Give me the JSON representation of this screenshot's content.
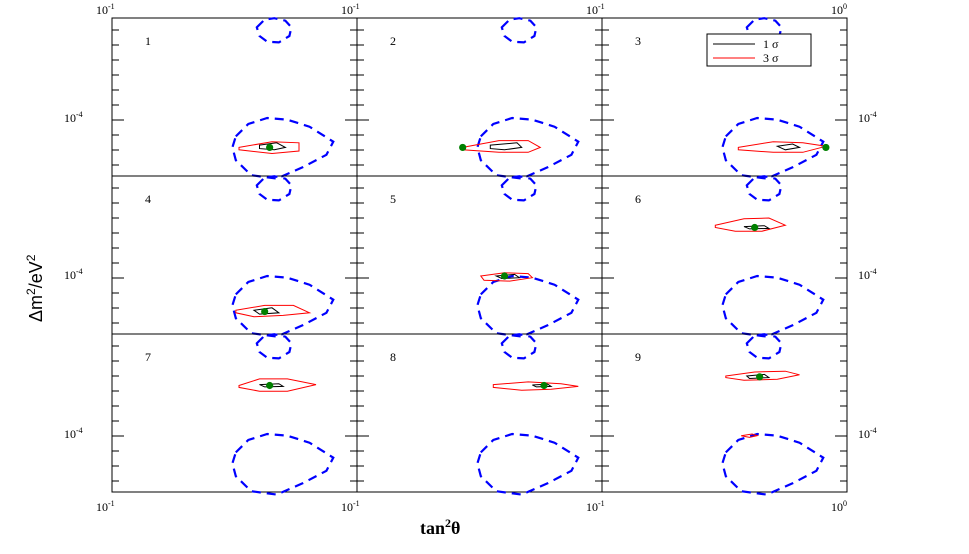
{
  "chart_data": {
    "type": "contour-grid",
    "xlabel_base": "tan",
    "xlabel_exp": "2",
    "xlabel_theta": "θ",
    "ylabel_base": "Δm",
    "ylabel_exp1": "2",
    "ylabel_mid": "/eV",
    "ylabel_exp2": "2",
    "x_scale": "log",
    "y_scale": "log",
    "xlim": [
      0.1,
      1.0
    ],
    "top_tick_labels": [
      {
        "mant": "10",
        "exp": "-1"
      },
      {
        "mant": "10",
        "exp": "-1"
      },
      {
        "mant": "10",
        "exp": "-1"
      },
      {
        "mant": "10",
        "exp": "0"
      }
    ],
    "bottom_tick_labels": [
      {
        "mant": "10",
        "exp": "-1"
      },
      {
        "mant": "10",
        "exp": "-1"
      },
      {
        "mant": "10",
        "exp": "-1"
      },
      {
        "mant": "10",
        "exp": "0"
      }
    ],
    "y_tick_label": {
      "mant": "10",
      "exp": "-4"
    },
    "legend": {
      "placement": "top-right of panel 3",
      "entries": [
        {
          "label": "1 σ",
          "color": "#000000"
        },
        {
          "label": "3 σ",
          "color": "#ff0000"
        }
      ]
    },
    "colors": {
      "allowed_region": "#0000ff",
      "one_sigma": "#000000",
      "three_sigma": "#ff0000",
      "best_fit": "#008000"
    },
    "panels": [
      {
        "label": "1",
        "best_fit": {
          "tan2theta": 0.44,
          "dm2": 7e-05
        },
        "legend": false
      },
      {
        "label": "2",
        "best_fit": {
          "tan2theta": 0.27,
          "dm2": 7e-05
        },
        "legend": false
      },
      {
        "label": "3",
        "best_fit": {
          "tan2theta": 0.82,
          "dm2": 7e-05
        },
        "legend": true
      },
      {
        "label": "4",
        "best_fit": {
          "tan2theta": 0.42,
          "dm2": 6.5e-05
        },
        "legend": false
      },
      {
        "label": "5",
        "best_fit": {
          "tan2theta": 0.4,
          "dm2": 0.0001
        },
        "legend": false
      },
      {
        "label": "6",
        "best_fit": {
          "tan2theta": 0.42,
          "dm2": 0.00018
        },
        "legend": false
      },
      {
        "label": "7",
        "best_fit": {
          "tan2theta": 0.44,
          "dm2": 0.00018
        },
        "legend": false
      },
      {
        "label": "8",
        "best_fit": {
          "tan2theta": 0.58,
          "dm2": 0.00018
        },
        "legend": false
      },
      {
        "label": "9",
        "best_fit": {
          "tan2theta": 0.44,
          "dm2": 0.0002
        },
        "legend": false
      }
    ]
  }
}
